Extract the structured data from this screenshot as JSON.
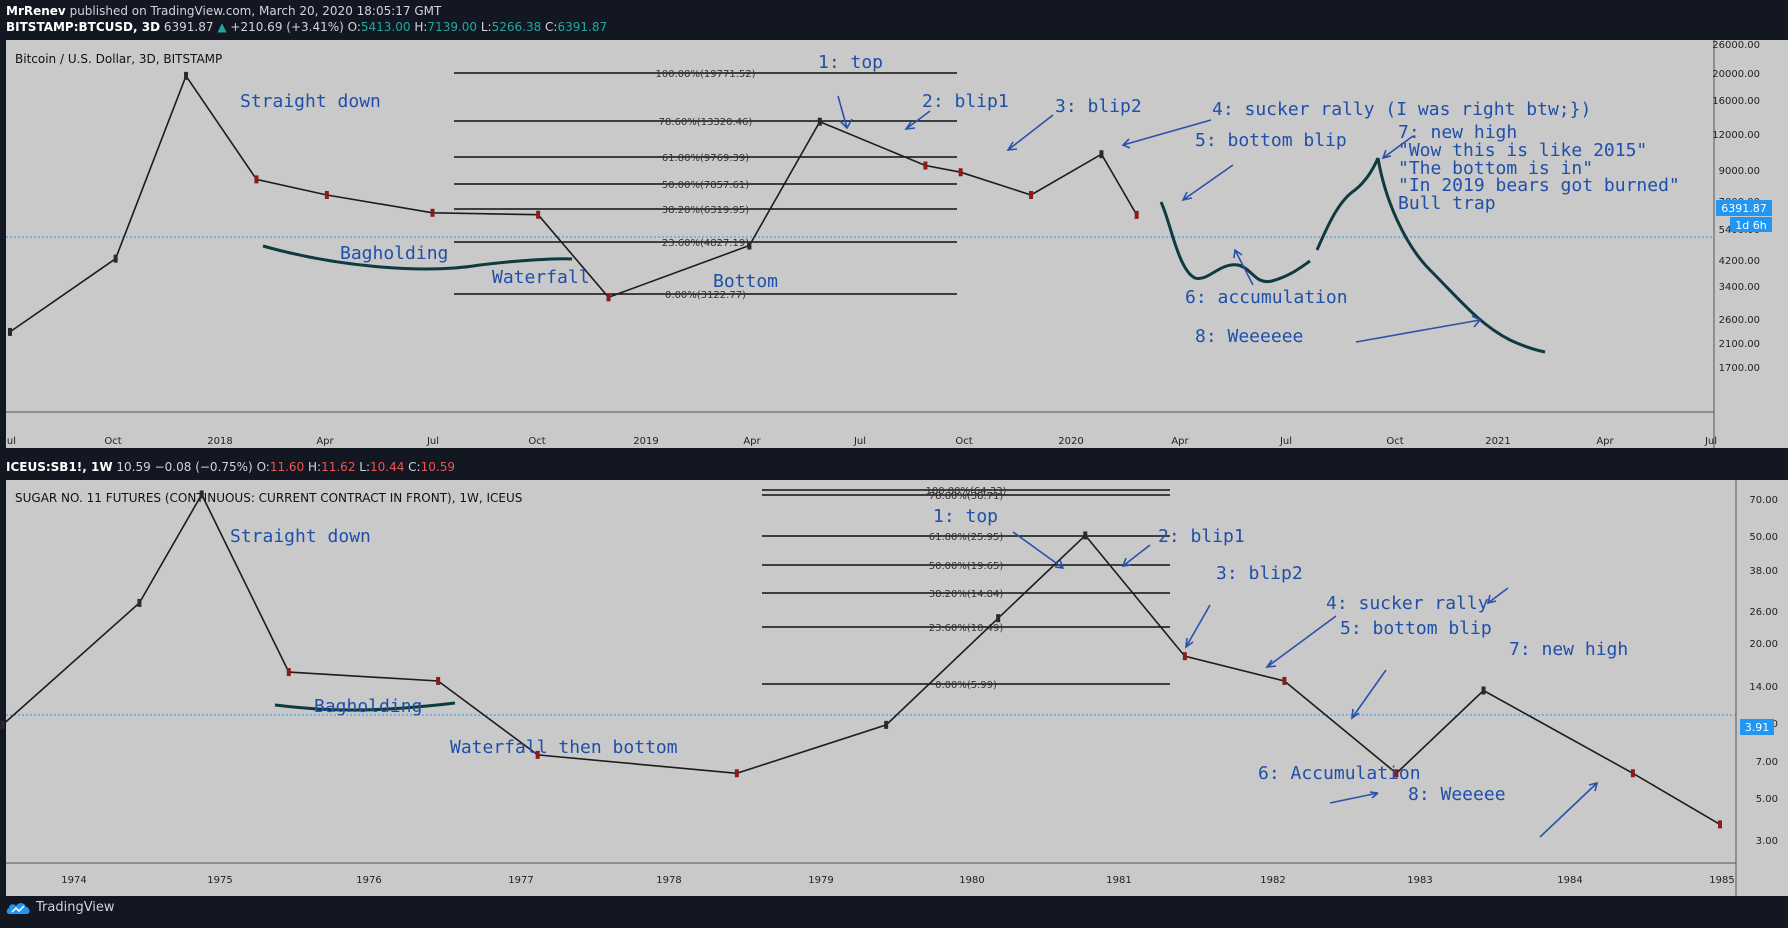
{
  "header": {
    "author": "MrRenev",
    "published": "published on TradingView.com, March 20, 2020 18:05:17 GMT"
  },
  "footer": {
    "logo_text": "TradingView"
  },
  "panels": [
    {
      "symbol": "BITSTAMP:BTCUSD, 3D",
      "last": "6391.87",
      "change": "+210.69 (+3.41%)",
      "o": "5413.00",
      "h": "7139.00",
      "l": "5266.38",
      "c": "6391.87",
      "title": "Bitcoin / U.S. Dollar, 3D, BITSTAMP",
      "price_label": "6391.87",
      "countdown": "1d 6h",
      "y_ticks": [
        "26000.00",
        "20000.00",
        "16000.00",
        "12000.00",
        "9000.00",
        "7000.00",
        "5400.00",
        "4200.00",
        "3400.00",
        "2600.00",
        "2100.00",
        "1700.00"
      ],
      "x_ticks": [
        "Jul",
        "Oct",
        "2018",
        "Apr",
        "Jul",
        "Oct",
        "2019",
        "Apr",
        "Jul",
        "Oct",
        "2020",
        "Apr",
        "Jul",
        "Oct",
        "2021",
        "Apr",
        "Jul"
      ],
      "fib": [
        "100.00%(19771.52)",
        "78.60%(13320.46)",
        "61.80%(9769.39)",
        "50.00%(7857.61)",
        "38.20%(6319.95)",
        "23.60%(4827.19)",
        "0.00%(3122.77)"
      ],
      "annotations": [
        "Straight down",
        "Bagholding",
        "Waterfall",
        "Bottom",
        "1: top",
        "2: blip1",
        "3: blip2",
        "4: sucker rally (I was right  btw;})",
        "5: bottom blip",
        "6: accumulation",
        "7: new high",
        "\"Wow this is like 2015\"",
        "\"The bottom is in\"",
        "\"In 2019 bears got burned\"",
        "Bull trap",
        "8: Weeeeee"
      ]
    },
    {
      "symbol": "ICEUS:SB1!, 1W",
      "last": "10.59",
      "change": "−0.08 (−0.75%)",
      "o": "11.60",
      "h": "11.62",
      "l": "10.44",
      "c": "10.59",
      "title": "SUGAR NO. 11 FUTURES (CONTINUOUS: CURRENT CONTRACT IN FRONT), 1W, ICEUS",
      "price_label": "3.91",
      "y_ticks": [
        "70.00",
        "50.00",
        "38.00",
        "26.00",
        "20.00",
        "14.00",
        "10.00",
        "7.00",
        "5.00",
        "3.00"
      ],
      "x_ticks": [
        "1974",
        "1975",
        "1976",
        "1977",
        "1978",
        "1979",
        "1980",
        "1981",
        "1982",
        "1983",
        "1984",
        "1985"
      ],
      "fib": [
        "100.00%(64.33)",
        "78.60%(38.71)",
        "61.80%(25.95)",
        "50.00%(19.65)",
        "38.20%(14.84)",
        "23.60%(10.49)",
        "0.00%(5.99)"
      ],
      "annotations": [
        "Straight down",
        "Bagholding",
        "Waterfall then bottom",
        "1: top",
        "2: blip1",
        "3: blip2",
        "4: sucker rally",
        "5: bottom blip",
        "6: Accumulation",
        "7: new high",
        "8: Weeeee"
      ]
    }
  ],
  "chart_data": [
    {
      "type": "line",
      "title": "Bitcoin / U.S. Dollar, 3D, BITSTAMP",
      "x": [
        "2017-07",
        "2017-10",
        "2017-12",
        "2018-02",
        "2018-04",
        "2018-07",
        "2018-10",
        "2018-12",
        "2019-04",
        "2019-06",
        "2019-09",
        "2019-10",
        "2019-12",
        "2020-02",
        "2020-03"
      ],
      "series": [
        {
          "values": [
            2500,
            4500,
            19500,
            8500,
            7500,
            6500,
            6400,
            3300,
            5000,
            13500,
            9500,
            9000,
            7500,
            10400,
            6391.87
          ]
        }
      ],
      "y_scale": "log",
      "ylim": [
        1700,
        26000
      ],
      "last_price": 6391.87
    },
    {
      "type": "line",
      "title": "SUGAR NO. 11 FUTURES (CONTINUOUS: CURRENT CONTRACT IN FRONT), 1W, ICEUS",
      "x": [
        "1973-07",
        "1974-06",
        "1974-11",
        "1975-06",
        "1976-06",
        "1977-02",
        "1978-06",
        "1979-06",
        "1980-03",
        "1980-10",
        "1981-06",
        "1982-02",
        "1982-11",
        "1983-06",
        "1984-06",
        "1985-01"
      ],
      "series": [
        {
          "values": [
            9,
            25,
            62,
            14,
            13,
            7,
            6,
            9,
            22,
            44,
            16,
            13,
            6,
            12,
            6,
            3.91
          ]
        }
      ],
      "y_scale": "log",
      "ylim": [
        3,
        70
      ],
      "last_price": 3.91
    }
  ],
  "colors": {
    "background": "#131722",
    "pane": "#c9c9c9",
    "annotation": "#1f4faa",
    "drawing": "#0d3b3f",
    "up": "#26a69a",
    "down": "#ef5350",
    "price_line": "#2196f3"
  }
}
